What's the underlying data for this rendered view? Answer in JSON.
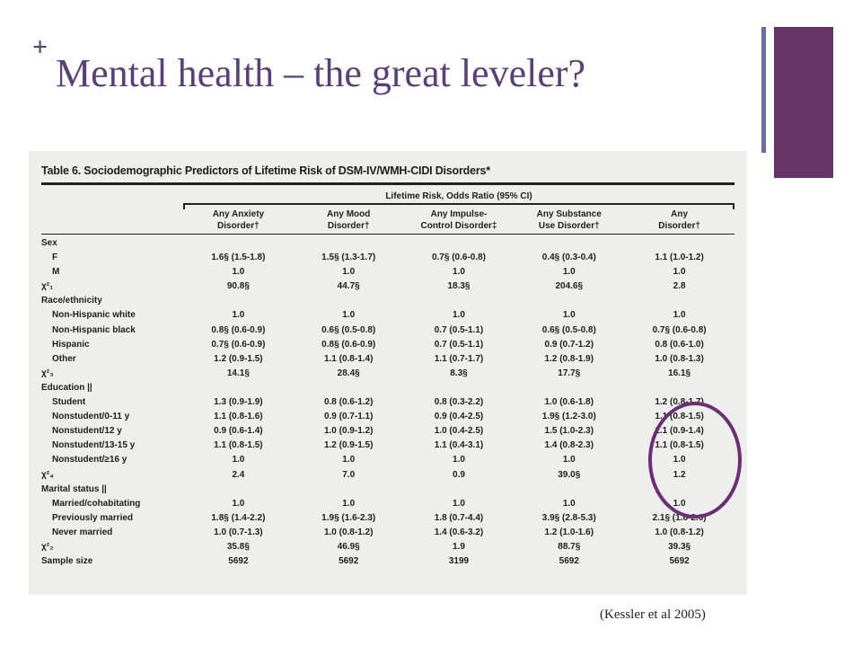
{
  "slide": {
    "plus": "+",
    "title": "Mental health – the great leveler?",
    "citation": "(Kessler et al 2005)"
  },
  "table": {
    "caption": "Table 6. Sociodemographic Predictors of Lifetime Risk of DSM-IV/WMH-CIDI Disorders*",
    "group_header": "Lifetime Risk, Odds Ratio (95% CI)",
    "columns": [
      [
        "Any Anxiety",
        "Disorder†"
      ],
      [
        "Any Mood",
        "Disorder†"
      ],
      [
        "Any Impulse-",
        "Control Disorder‡"
      ],
      [
        "Any Substance",
        "Use Disorder†"
      ],
      [
        "Any",
        "Disorder†"
      ]
    ],
    "rows": [
      {
        "label": "Sex",
        "indent": false,
        "values": [
          "",
          "",
          "",
          "",
          ""
        ]
      },
      {
        "label": "F",
        "indent": true,
        "values": [
          "1.6§ (1.5-1.8)",
          "1.5§ (1.3-1.7)",
          "0.7§ (0.6-0.8)",
          "0.4§ (0.3-0.4)",
          "1.1 (1.0-1.2)"
        ]
      },
      {
        "label": "M",
        "indent": true,
        "values": [
          "1.0",
          "1.0",
          "1.0",
          "1.0",
          "1.0"
        ]
      },
      {
        "label": "χ²₁",
        "indent": false,
        "values": [
          "90.8§",
          "44.7§",
          "18.3§",
          "204.6§",
          "2.8"
        ]
      },
      {
        "label": "Race/ethnicity",
        "indent": false,
        "values": [
          "",
          "",
          "",
          "",
          ""
        ]
      },
      {
        "label": "Non-Hispanic white",
        "indent": true,
        "values": [
          "1.0",
          "1.0",
          "1.0",
          "1.0",
          "1.0"
        ]
      },
      {
        "label": "Non-Hispanic black",
        "indent": true,
        "values": [
          "0.8§ (0.6-0.9)",
          "0.6§ (0.5-0.8)",
          "0.7 (0.5-1.1)",
          "0.6§ (0.5-0.8)",
          "0.7§ (0.6-0.8)"
        ]
      },
      {
        "label": "Hispanic",
        "indent": true,
        "values": [
          "0.7§ (0.6-0.9)",
          "0.8§ (0.6-0.9)",
          "0.7 (0.5-1.1)",
          "0.9 (0.7-1.2)",
          "0.8 (0.6-1.0)"
        ]
      },
      {
        "label": "Other",
        "indent": true,
        "values": [
          "1.2 (0.9-1.5)",
          "1.1 (0.8-1.4)",
          "1.1 (0.7-1.7)",
          "1.2 (0.8-1.9)",
          "1.0 (0.8-1.3)"
        ]
      },
      {
        "label": "χ²₃",
        "indent": false,
        "values": [
          "14.1§",
          "28.4§",
          "8.3§",
          "17.7§",
          "16.1§"
        ]
      },
      {
        "label": "Education ||",
        "indent": false,
        "values": [
          "",
          "",
          "",
          "",
          ""
        ]
      },
      {
        "label": "Student",
        "indent": true,
        "values": [
          "1.3 (0.9-1.9)",
          "0.8 (0.6-1.2)",
          "0.8 (0.3-2.2)",
          "1.0 (0.6-1.8)",
          "1.2 (0.8-1.7)"
        ]
      },
      {
        "label": "Nonstudent/0-11 y",
        "indent": true,
        "values": [
          "1.1 (0.8-1.6)",
          "0.9 (0.7-1.1)",
          "0.9 (0.4-2.5)",
          "1.9§ (1.2-3.0)",
          "1.1 (0.8-1.5)"
        ]
      },
      {
        "label": "Nonstudent/12 y",
        "indent": true,
        "values": [
          "0.9 (0.6-1.4)",
          "1.0 (0.9-1.2)",
          "1.0 (0.4-2.5)",
          "1.5 (1.0-2.3)",
          "1.1 (0.9-1.4)"
        ]
      },
      {
        "label": "Nonstudent/13-15 y",
        "indent": true,
        "values": [
          "1.1 (0.8-1.5)",
          "1.2 (0.9-1.5)",
          "1.1 (0.4-3.1)",
          "1.4 (0.8-2.3)",
          "1.1 (0.8-1.5)"
        ]
      },
      {
        "label": "Nonstudent/≥16 y",
        "indent": true,
        "values": [
          "1.0",
          "1.0",
          "1.0",
          "1.0",
          "1.0"
        ]
      },
      {
        "label": "χ²₄",
        "indent": false,
        "values": [
          "2.4",
          "7.0",
          "0.9",
          "39.0§",
          "1.2"
        ]
      },
      {
        "label": "Marital status ||",
        "indent": false,
        "values": [
          "",
          "",
          "",
          "",
          ""
        ]
      },
      {
        "label": "Married/cohabitating",
        "indent": true,
        "values": [
          "1.0",
          "1.0",
          "1.0",
          "1.0",
          "1.0"
        ]
      },
      {
        "label": "Previously married",
        "indent": true,
        "values": [
          "1.8§ (1.4-2.2)",
          "1.9§ (1.6-2.3)",
          "1.8 (0.7-4.4)",
          "3.9§ (2.8-5.3)",
          "2.1§ (1.6-2.6)"
        ]
      },
      {
        "label": "Never married",
        "indent": true,
        "values": [
          "1.0 (0.7-1.3)",
          "1.0 (0.8-1.2)",
          "1.4 (0.6-3.2)",
          "1.2 (1.0-1.6)",
          "1.0 (0.8-1.2)"
        ]
      },
      {
        "label": "χ²₂",
        "indent": false,
        "values": [
          "35.8§",
          "46.9§",
          "1.9",
          "88.7§",
          "39.3§"
        ]
      },
      {
        "label": "Sample size",
        "indent": false,
        "values": [
          "5692",
          "5692",
          "3199",
          "5692",
          "5692"
        ]
      }
    ]
  },
  "colors": {
    "title": "#5a3f7a",
    "accent_block": "#653366",
    "accent_line": "#6a6aaa",
    "highlight_circle": "#6b2f73",
    "table_bg": "#eeeeec"
  }
}
